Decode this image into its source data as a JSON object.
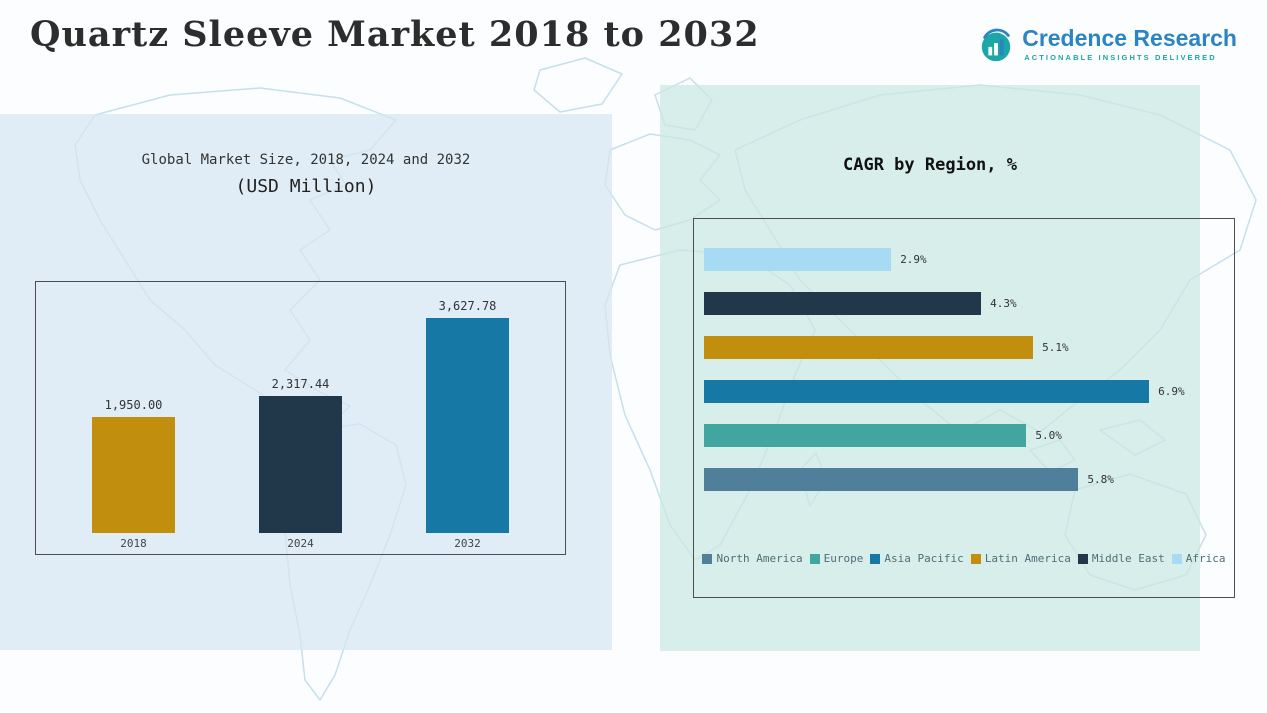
{
  "page": {
    "title": "Quartz Sleeve Market 2018 to 2032"
  },
  "logo": {
    "brand": "Credence Research",
    "tagline": "Actionable Insights Delivered",
    "brand_color": "#2b85c4",
    "icon_color": "#1aa7a5"
  },
  "colors": {
    "panel_left_bg": "#d5e6f2",
    "panel_right_bg": "#cbe8e2",
    "map_line": "#c6e0ea",
    "chart_border": "#4d4d4d"
  },
  "chart_data": [
    {
      "type": "bar",
      "orientation": "vertical",
      "title": "Global Market Size, 2018, 2024 and 2032",
      "subtitle": "(USD Million)",
      "categories": [
        "2018",
        "2024",
        "2032"
      ],
      "values": [
        1950.0,
        2317.44,
        3627.78
      ],
      "value_labels": [
        "1,950.00",
        "2,317.44",
        "3,627.78"
      ],
      "bar_colors": [
        "#c18e0e",
        "#21384a",
        "#1678a4"
      ],
      "xlabel": "",
      "ylabel": "",
      "ylim": [
        0,
        3800
      ],
      "grid": false,
      "legend_position": "none"
    },
    {
      "type": "bar",
      "orientation": "horizontal",
      "title": "CAGR by Region, %",
      "categories": [
        "Africa",
        "Middle East",
        "Latin America",
        "Asia Pacific",
        "Europe",
        "North America"
      ],
      "values": [
        2.9,
        4.3,
        5.1,
        6.9,
        5.0,
        5.8
      ],
      "value_labels": [
        "2.9%",
        "4.3%",
        "5.1%",
        "6.9%",
        "5.0%",
        "5.8%"
      ],
      "bar_colors": [
        "#a7daf3",
        "#21384a",
        "#c18e0e",
        "#1678a4",
        "#41a69f",
        "#4f7f9b"
      ],
      "xlabel": "",
      "ylabel": "",
      "xlim": [
        0,
        7.5
      ],
      "grid": false,
      "legend_position": "bottom",
      "legend": [
        {
          "label": "North America",
          "color": "#4f7f9b"
        },
        {
          "label": "Europe",
          "color": "#41a69f"
        },
        {
          "label": "Asia Pacific",
          "color": "#1678a4"
        },
        {
          "label": "Latin America",
          "color": "#c18e0e"
        },
        {
          "label": "Middle East",
          "color": "#21384a"
        },
        {
          "label": "Africa",
          "color": "#a7daf3"
        }
      ]
    }
  ]
}
